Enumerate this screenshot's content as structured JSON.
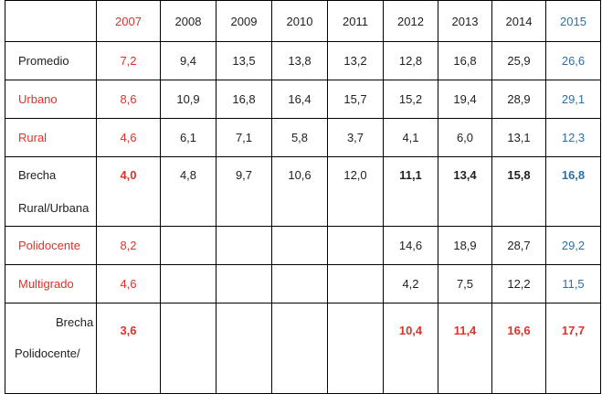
{
  "years": [
    "2007",
    "2008",
    "2009",
    "2010",
    "2011",
    "2012",
    "2013",
    "2014",
    "2015"
  ],
  "rows": [
    {
      "label": "Promedio",
      "values": [
        "7,2",
        "9,4",
        "13,5",
        "13,8",
        "13,2",
        "12,8",
        "16,8",
        "25,9",
        "26,6"
      ]
    },
    {
      "label": "Urbano",
      "values": [
        "8,6",
        "10,9",
        "16,8",
        "16,4",
        "15,7",
        "15,2",
        "19,4",
        "28,9",
        "29,1"
      ]
    },
    {
      "label": "Rural",
      "values": [
        "4,6",
        "6,1",
        "7,1",
        "5,8",
        "3,7",
        "4,1",
        "6,0",
        "13,1",
        "12,3"
      ]
    },
    {
      "label_line1": "Brecha",
      "label_line2": "Rural/Urbana",
      "values": [
        "4,0",
        "4,8",
        "9,7",
        "10,6",
        "12,0",
        "11,1",
        "13,4",
        "15,8",
        "16,8"
      ]
    },
    {
      "label": "Polidocente",
      "values": [
        "8,2",
        "",
        "",
        "",
        "",
        "14,6",
        "18,9",
        "28,7",
        "29,2"
      ]
    },
    {
      "label": "Multigrado",
      "values": [
        "4,6",
        "",
        "",
        "",
        "",
        "4,2",
        "7,5",
        "12,2",
        "11,5"
      ]
    },
    {
      "label_line1": "Brecha",
      "label_line2": "Polidocente/",
      "values": [
        "3,6",
        "",
        "",
        "",
        "",
        "10,4",
        "11,4",
        "16,6",
        "17,7"
      ]
    }
  ],
  "colors": {
    "red": "#e0312a",
    "blue": "#2e6fa6",
    "text": "#222222",
    "border": "#000000"
  }
}
